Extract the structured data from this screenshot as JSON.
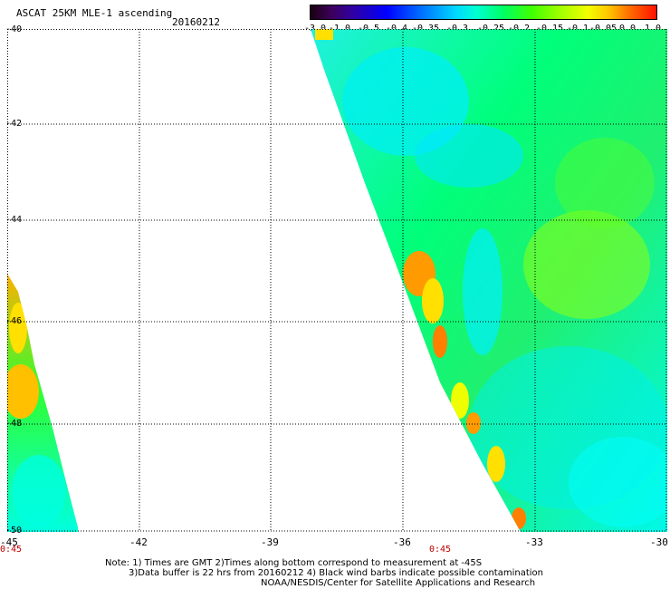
{
  "title": "ASCAT 25KM MLE-1 ascending",
  "date": "20160212",
  "colorbar": {
    "labels": [
      "-3.0",
      "-1.0",
      "-0.5",
      "-0.4",
      "-0.35",
      "-0.3",
      "-0.25",
      "-0.2",
      "-0.15",
      "-0.1",
      "-0.05",
      "0.0",
      "1.0"
    ]
  },
  "map": {
    "lat_labels": [
      "-40",
      "-42",
      "-44",
      "-46",
      "-48",
      "-50"
    ],
    "lon_labels": [
      "-45",
      "-42",
      "-39",
      "-36",
      "-33",
      "-30"
    ],
    "time_labels": [
      "0:45",
      "0:45"
    ]
  },
  "notes": [
    "Note: 1) Times are GMT 2)Times along bottom correspond to measurement at -45S",
    "3)Data buffer is 22 hrs from 20160212 4) Black wind barbs indicate possible contamination",
    "NOAA/NESDIS/Center for Satellite Applications and Research"
  ]
}
